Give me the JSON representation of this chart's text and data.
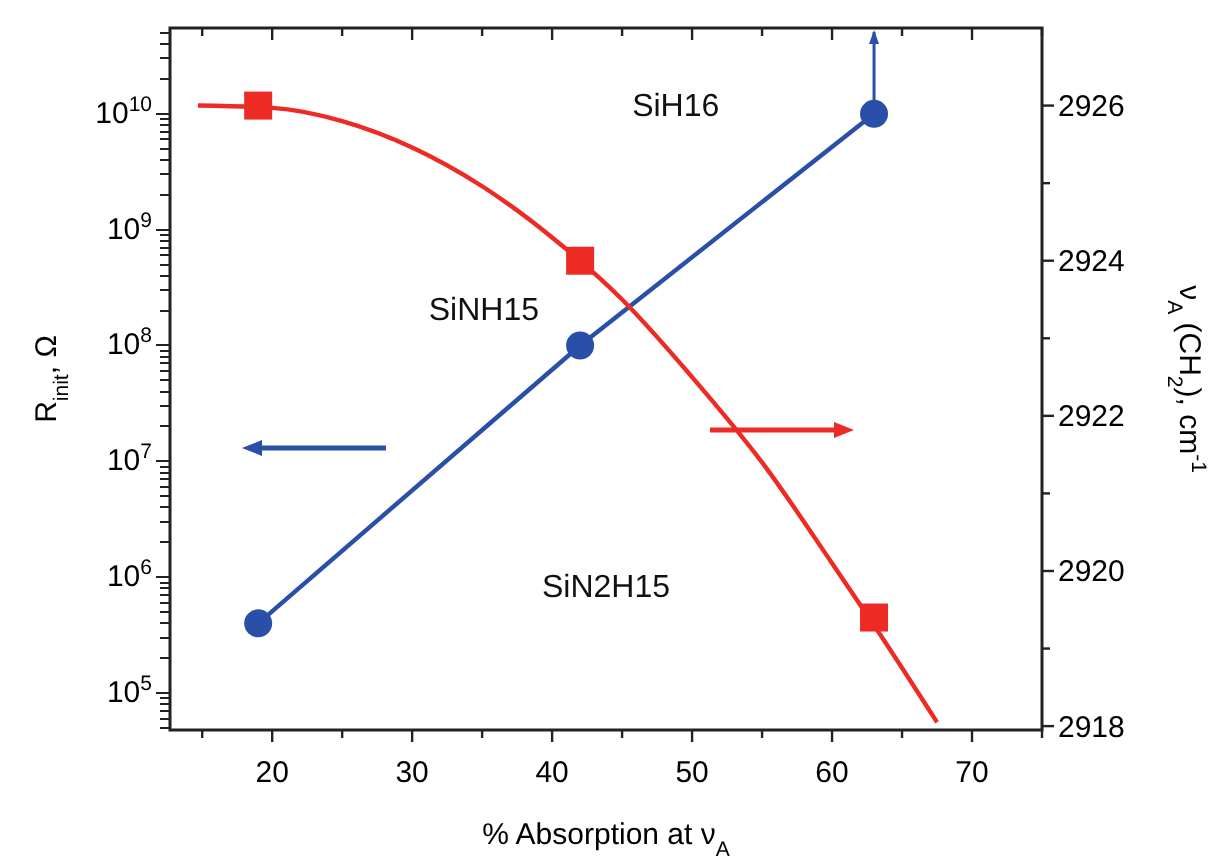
{
  "chart_data": {
    "type": "line",
    "xlabel": "% Absorption at ν$_{A}$",
    "ylabel": "R$_{init}$, Ω",
    "y2label": "ν$_{A}$ (CH$_{2}$), cm$^{-1}$",
    "log": "y",
    "grid": false,
    "xlim": [
      12.7,
      75
    ],
    "xticks": [
      {
        "value": 15,
        "label": null
      },
      20,
      {
        "value": 25,
        "label": null
      },
      30,
      {
        "value": 35,
        "label": null
      },
      40,
      {
        "value": 45,
        "label": null
      },
      50,
      {
        "value": 55,
        "label": null
      },
      60,
      {
        "value": 65,
        "label": null
      },
      70,
      {
        "value": 75,
        "label": null
      }
    ],
    "ylim": [
      48000,
      55000000000
    ],
    "yticks": [
      {
        "value": 50000,
        "label": null
      },
      {
        "value": 60000,
        "label": null
      },
      {
        "value": 70000,
        "label": null
      },
      {
        "value": 80000,
        "label": null
      },
      {
        "value": 90000,
        "label": null
      },
      {
        "value": 100000,
        "label": "10$^{5}$"
      },
      {
        "value": 200000,
        "label": null
      },
      {
        "value": 300000,
        "label": null
      },
      {
        "value": 400000,
        "label": null
      },
      {
        "value": 500000,
        "label": null
      },
      {
        "value": 600000,
        "label": null
      },
      {
        "value": 700000,
        "label": null
      },
      {
        "value": 800000,
        "label": null
      },
      {
        "value": 900000,
        "label": null
      },
      {
        "value": 1000000,
        "label": "10$^{6}$"
      },
      {
        "value": 2000000,
        "label": null
      },
      {
        "value": 3000000,
        "label": null
      },
      {
        "value": 4000000,
        "label": null
      },
      {
        "value": 5000000,
        "label": null
      },
      {
        "value": 6000000,
        "label": null
      },
      {
        "value": 7000000,
        "label": null
      },
      {
        "value": 8000000,
        "label": null
      },
      {
        "value": 9000000,
        "label": null
      },
      {
        "value": 10000000,
        "label": "10$^{7}$"
      },
      {
        "value": 20000000,
        "label": null
      },
      {
        "value": 30000000,
        "label": null
      },
      {
        "value": 40000000,
        "label": null
      },
      {
        "value": 50000000,
        "label": null
      },
      {
        "value": 60000000,
        "label": null
      },
      {
        "value": 70000000,
        "label": null
      },
      {
        "value": 80000000,
        "label": null
      },
      {
        "value": 90000000,
        "label": null
      },
      {
        "value": 100000000,
        "label": "10$^{8}$"
      },
      {
        "value": 200000000,
        "label": null
      },
      {
        "value": 300000000,
        "label": null
      },
      {
        "value": 400000000,
        "label": null
      },
      {
        "value": 500000000,
        "label": null
      },
      {
        "value": 600000000,
        "label": null
      },
      {
        "value": 700000000,
        "label": null
      },
      {
        "value": 800000000,
        "label": null
      },
      {
        "value": 900000000,
        "label": null
      },
      {
        "value": 1000000000,
        "label": "10$^{9}$"
      },
      {
        "value": 2000000000,
        "label": null
      },
      {
        "value": 3000000000,
        "label": null
      },
      {
        "value": 4000000000,
        "label": null
      },
      {
        "value": 5000000000,
        "label": null
      },
      {
        "value": 6000000000,
        "label": null
      },
      {
        "value": 7000000000,
        "label": null
      },
      {
        "value": 8000000000,
        "label": null
      },
      {
        "value": 9000000000,
        "label": null
      },
      {
        "value": 10000000000,
        "label": "10$^{10}$"
      },
      {
        "value": 20000000000,
        "label": null
      },
      {
        "value": 30000000000,
        "label": null
      },
      {
        "value": 40000000000,
        "label": null
      },
      {
        "value": 50000000000,
        "label": null
      }
    ],
    "y2lim": [
      2917.95,
      2927
    ],
    "y2ticks": [
      2918,
      {
        "value": 2919,
        "label": null
      },
      2920,
      {
        "value": 2921,
        "label": null
      },
      2922,
      {
        "value": 2923,
        "label": null
      },
      2924,
      {
        "value": 2925,
        "label": null
      },
      2926
    ],
    "series": [
      {
        "color": "#2a4fa8",
        "marker": "circle",
        "x": [
          19,
          42,
          63
        ],
        "values": [
          400000,
          100000000,
          10000000000
        ]
      },
      {
        "axis": "y2",
        "color": "#ee2a24",
        "marker": "none",
        "x": [
          14.7,
          20,
          25,
          30,
          35,
          40,
          45,
          50,
          55,
          60,
          63,
          67.5
        ],
        "values": [
          2926.0,
          2925.97,
          2925.8,
          2925.46,
          2924.96,
          2924.3,
          2923.5,
          2922.5,
          2921.4,
          2920.1,
          2919.3,
          2918.05
        ]
      },
      {
        "type": "scatter",
        "axis": "y2",
        "color": "#ee2a24",
        "marker": "square",
        "x": [
          19,
          42,
          63
        ],
        "values": [
          2926,
          2924,
          2919.4
        ]
      }
    ],
    "annotations": [
      "SiH16",
      "SiNH15",
      "SiN2H15"
    ]
  }
}
